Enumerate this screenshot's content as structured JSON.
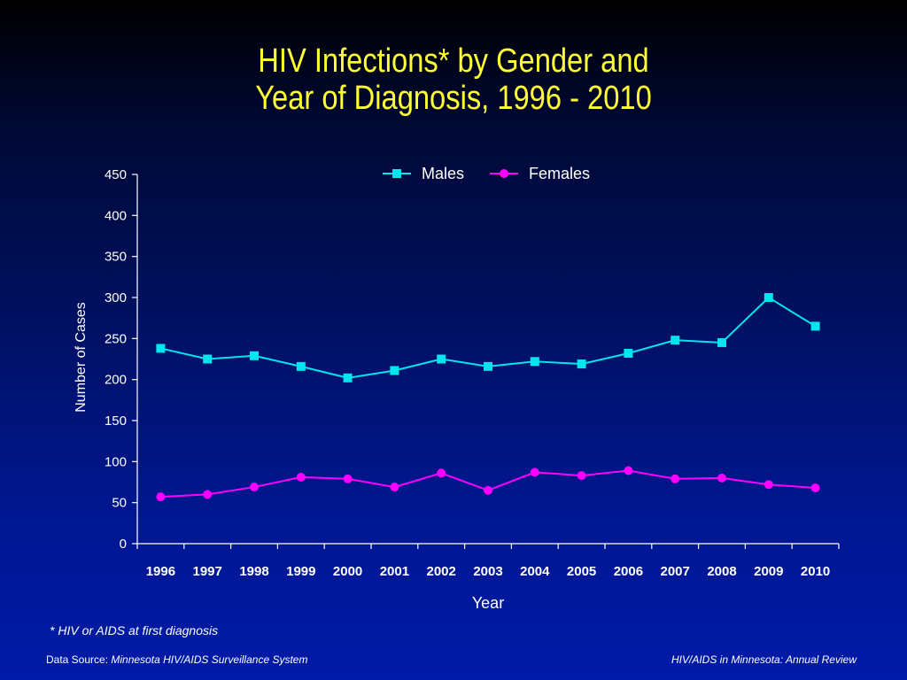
{
  "title_line1": "HIV Infections* by Gender and",
  "title_line2": "Year of Diagnosis, 1996 - 2010",
  "footnote": "* HIV or AIDS at first diagnosis",
  "source_label": "Data Source: ",
  "source_value": "Minnesota HIV/AIDS Surveillance System",
  "review_label": "HIV/AIDS in Minnesota: Annual Review",
  "colors": {
    "title": "#ffff33",
    "males": "#00e5ee",
    "females": "#ff00ff",
    "axis": "#ffffff"
  },
  "chart_data": {
    "type": "line",
    "xlabel": "Year",
    "ylabel": "Number of Cases",
    "ylim": [
      0,
      450
    ],
    "yticks": [
      0,
      50,
      100,
      150,
      200,
      250,
      300,
      350,
      400,
      450
    ],
    "categories": [
      "1996",
      "1997",
      "1998",
      "1999",
      "2000",
      "2001",
      "2002",
      "2003",
      "2004",
      "2005",
      "2006",
      "2007",
      "2008",
      "2009",
      "2010"
    ],
    "legend_position": "top-center",
    "grid": false,
    "series": [
      {
        "name": "Males",
        "marker": "square",
        "values": [
          238,
          225,
          229,
          216,
          202,
          211,
          225,
          216,
          222,
          219,
          232,
          248,
          245,
          300,
          265
        ]
      },
      {
        "name": "Females",
        "marker": "circle",
        "values": [
          57,
          60,
          69,
          81,
          79,
          69,
          86,
          65,
          87,
          83,
          89,
          79,
          80,
          72,
          68
        ]
      }
    ]
  }
}
